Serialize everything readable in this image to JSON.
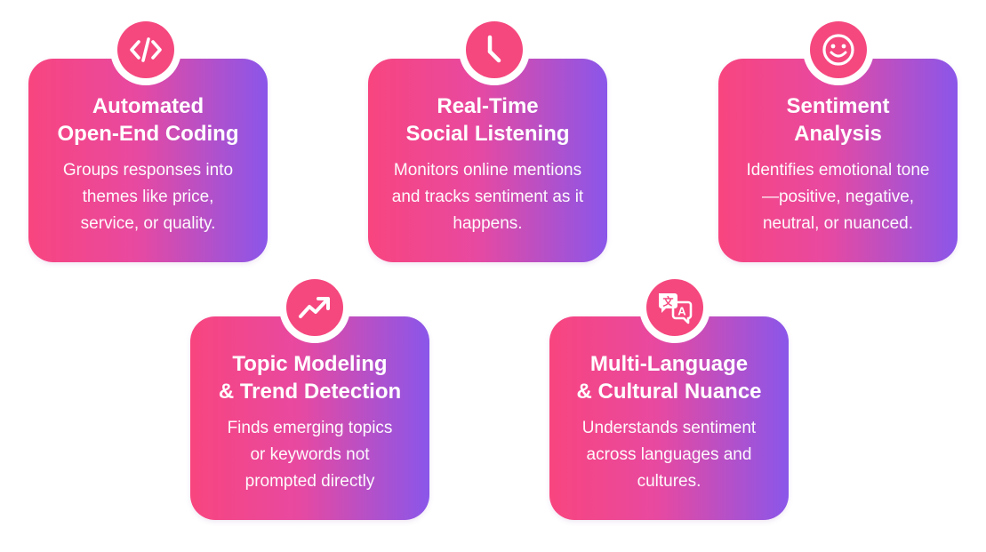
{
  "cards": [
    {
      "icon": "code-icon",
      "title_lines": [
        "Automated",
        "Open-End Coding"
      ],
      "desc_lines": [
        "Groups responses into",
        "themes like price,",
        "service, or quality."
      ]
    },
    {
      "icon": "clock-icon",
      "title_lines": [
        "Real-Time",
        "Social Listening"
      ],
      "desc_lines": [
        "Monitors online mentions",
        "and tracks sentiment as it",
        "happens."
      ]
    },
    {
      "icon": "smiley-icon",
      "title_lines": [
        "Sentiment",
        "Analysis"
      ],
      "desc_lines": [
        "Identifies emotional tone",
        "—positive, negative,",
        "neutral, or nuanced."
      ]
    },
    {
      "icon": "trend-arrow-icon",
      "title_lines": [
        "Topic Modeling",
        "& Trend Detection"
      ],
      "desc_lines": [
        "Finds emerging topics",
        "or keywords not",
        "prompted directly"
      ]
    },
    {
      "icon": "translate-icon",
      "title_lines": [
        "Multi-Language",
        "& Cultural Nuance"
      ],
      "desc_lines": [
        "Understands sentiment",
        "across languages and",
        "cultures."
      ]
    }
  ],
  "colors": {
    "gradient_start": "#f8457f",
    "gradient_mid": "#e849a0",
    "gradient_end": "#8a56ea",
    "icon_fill": "#f5487e"
  },
  "icon_glyphs": {
    "translate_left": "文",
    "translate_right": "A"
  }
}
